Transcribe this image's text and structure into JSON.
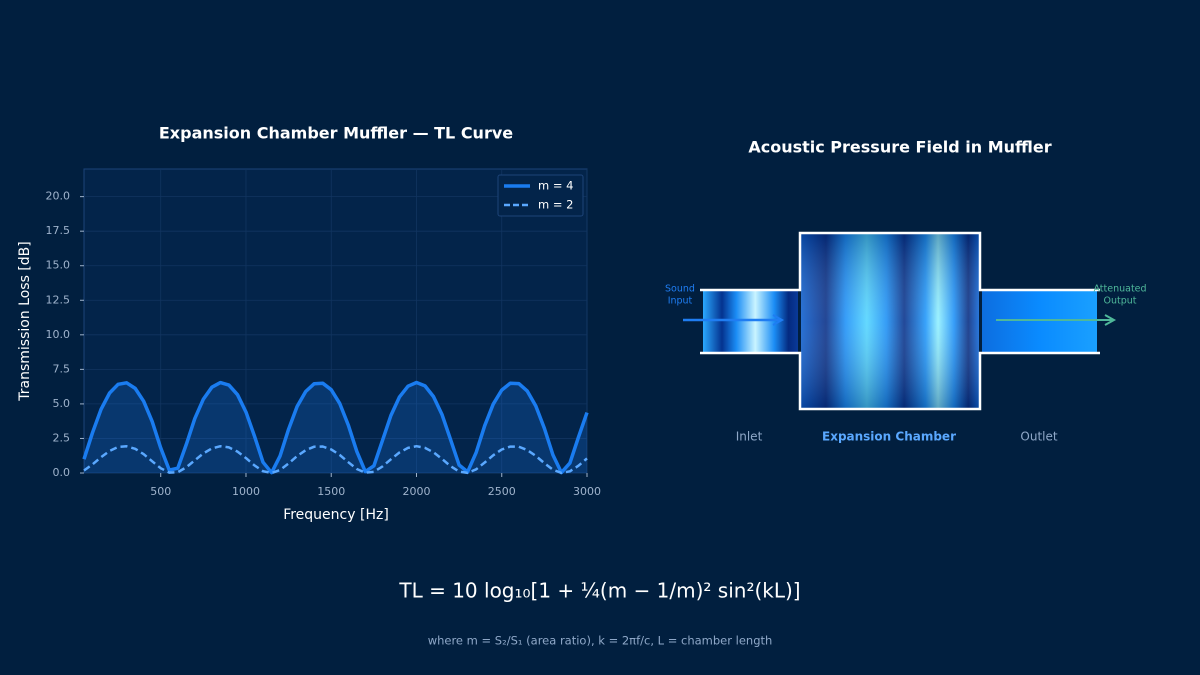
{
  "chart_data": {
    "type": "line",
    "title": "Expansion Chamber Muffler — TL Curve",
    "x_label": "Frequency [Hz]",
    "y_label": "Transmission Loss [dB]",
    "x": [
      50,
      100,
      150,
      200,
      250,
      300,
      350,
      400,
      450,
      500,
      550,
      600,
      650,
      700,
      750,
      800,
      850,
      900,
      950,
      1000,
      1050,
      1100,
      1150,
      1200,
      1250,
      1300,
      1350,
      1400,
      1450,
      1500,
      1550,
      1600,
      1650,
      1700,
      1750,
      1800,
      1850,
      1900,
      1950,
      2000,
      2050,
      2100,
      2150,
      2200,
      2250,
      2300,
      2350,
      2400,
      2450,
      2500,
      2550,
      2600,
      2650,
      2700,
      2750,
      2800,
      2850,
      2900,
      2950,
      3000
    ],
    "series": [
      {
        "name": "m = 4",
        "color": "#1a7cf0",
        "style": "solid",
        "area": true,
        "values": [
          1.0,
          2.92,
          4.62,
          5.79,
          6.42,
          6.53,
          6.12,
          5.19,
          3.72,
          1.82,
          0.21,
          0.35,
          2.07,
          3.94,
          5.35,
          6.21,
          6.54,
          6.36,
          5.67,
          4.41,
          2.66,
          0.78,
          0.02,
          1.24,
          3.17,
          4.81,
          5.9,
          6.46,
          6.5,
          6.03,
          5.02,
          3.47,
          1.56,
          0.1,
          0.52,
          2.34,
          4.16,
          5.49,
          6.28,
          6.55,
          6.3,
          5.53,
          4.21,
          2.41,
          0.58,
          0.08,
          1.49,
          3.42,
          4.98,
          6.0,
          6.5,
          6.47,
          5.93,
          4.85,
          3.23,
          1.31,
          0.03,
          0.72,
          2.6,
          4.37
        ]
      },
      {
        "name": "m = 2",
        "color": "#5aa8ff",
        "style": "dashed",
        "area": false,
        "values": [
          0.18,
          0.62,
          1.15,
          1.6,
          1.88,
          1.93,
          1.75,
          1.36,
          0.85,
          0.35,
          0.03,
          0.06,
          0.41,
          0.92,
          1.42,
          1.78,
          1.94,
          1.85,
          1.55,
          1.08,
          0.55,
          0.13,
          0.0,
          0.22,
          0.69,
          1.22,
          1.65,
          1.9,
          1.92,
          1.71,
          1.3,
          0.78,
          0.29,
          0.02,
          0.09,
          0.47,
          0.99,
          1.48,
          1.82,
          1.94,
          1.82,
          1.5,
          1.01,
          0.49,
          0.1,
          0.01,
          0.27,
          0.76,
          1.28,
          1.7,
          1.91,
          1.9,
          1.66,
          1.24,
          0.71,
          0.24,
          0.01,
          0.12,
          0.53,
          1.06
        ]
      }
    ],
    "xlim": [
      50,
      3000
    ],
    "ylim": [
      0,
      22
    ],
    "xticks": [
      500,
      1000,
      1500,
      2000,
      2500,
      3000
    ],
    "yticks": [
      {
        "value": 0,
        "label": "0.0"
      },
      {
        "value": 2.5,
        "label": "2.5"
      },
      {
        "value": 5,
        "label": "5.0"
      },
      {
        "value": 7.5,
        "label": "7.5"
      },
      {
        "value": 10,
        "label": "10.0"
      },
      {
        "value": 12.5,
        "label": "12.5"
      },
      {
        "value": 15,
        "label": "15.0"
      },
      {
        "value": 17.5,
        "label": "17.5"
      },
      {
        "value": 20,
        "label": "20.0"
      }
    ],
    "grid": true,
    "legend": "upper right"
  },
  "diagram": {
    "title": "Acoustic Pressure Field in Muffler",
    "input_label": [
      "Sound",
      "Input"
    ],
    "output_label": [
      "Attenuated",
      "Output"
    ],
    "sections": [
      "Inlet",
      "Expansion Chamber",
      "Outlet"
    ]
  },
  "formula": "TL = 10 log₁₀[1 + ¼(m − 1/m)² sin²(kL)]",
  "note": "where  m = S₂/S₁ (area ratio),  k = 2πf/c,  L = chamber length"
}
